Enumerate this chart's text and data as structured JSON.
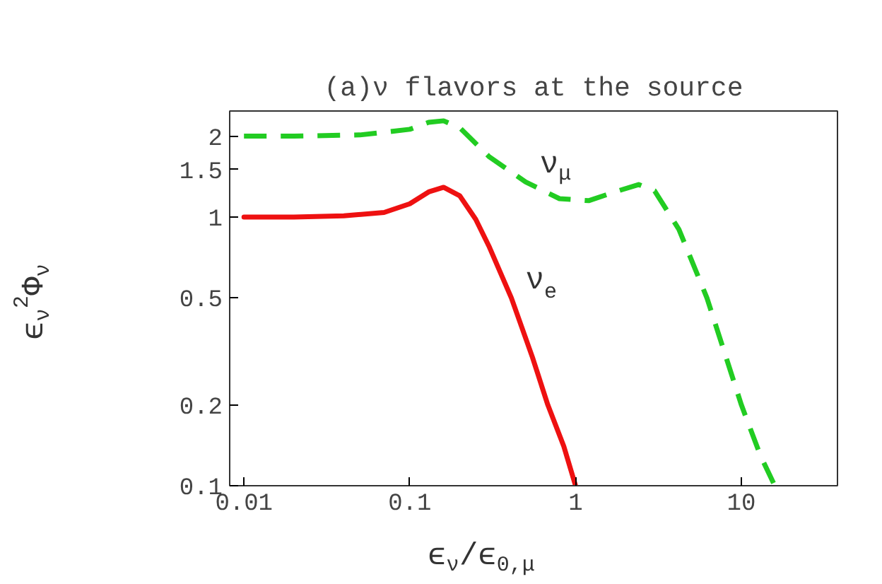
{
  "chart_data": {
    "type": "line",
    "title": "(a)ν flavors at the source",
    "xlabel": "ϵ$_{ν}$/ϵ$_{0,μ}$",
    "ylabel": "ϵ$_{ν}$$^{2}$Φ$_{ν}$",
    "log": "xy",
    "xlim": [
      0.0082,
      38
    ],
    "ylim": [
      0.1,
      2.48
    ],
    "xticks": [
      0.01,
      0.1,
      1,
      10
    ],
    "yticks": [
      0.1,
      0.2,
      0.5,
      1,
      1.5,
      2
    ],
    "grid": false,
    "legend": false,
    "series": [
      {
        "name": "ν$_{e}$",
        "color": "#ee1111",
        "line_style": "solid",
        "x": [
          0.01,
          0.02,
          0.04,
          0.07,
          0.1,
          0.13,
          0.16,
          0.2,
          0.25,
          0.3,
          0.41,
          0.55,
          0.68,
          0.85,
          1.0
        ],
        "values": [
          1,
          1,
          1.01,
          1.04,
          1.12,
          1.24,
          1.29,
          1.2,
          0.98,
          0.78,
          0.5,
          0.3,
          0.2,
          0.14,
          0.1
        ]
      },
      {
        "name": "ν$_{μ}$",
        "color": "#22cc22",
        "line_style": "dashed",
        "x": [
          0.01,
          0.02,
          0.05,
          0.1,
          0.13,
          0.16,
          0.2,
          0.3,
          0.5,
          0.8,
          1.2,
          1.8,
          2.4,
          3.0,
          4.2,
          6.2,
          10,
          13,
          15.9
        ],
        "values": [
          2,
          2,
          2.02,
          2.12,
          2.25,
          2.28,
          2.15,
          1.68,
          1.35,
          1.17,
          1.15,
          1.25,
          1.32,
          1.25,
          0.9,
          0.5,
          0.2,
          0.13,
          0.1
        ]
      }
    ]
  }
}
